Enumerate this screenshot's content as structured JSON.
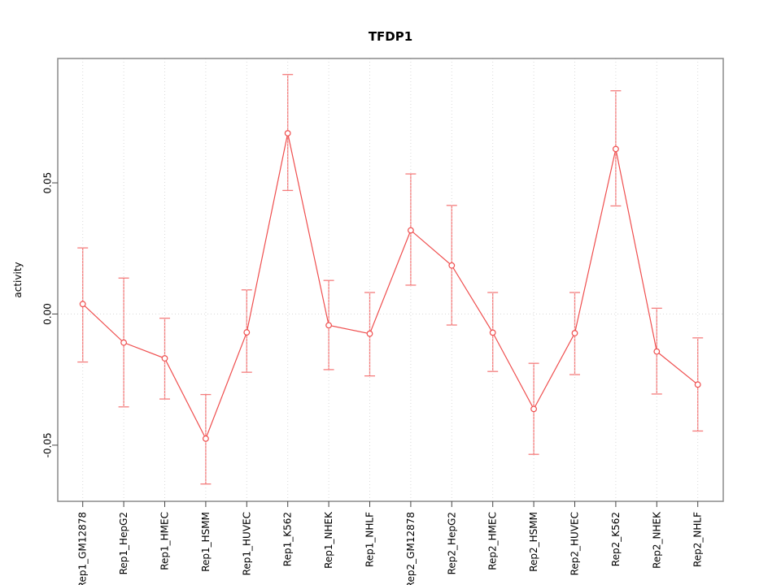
{
  "chart_data": {
    "type": "line",
    "title": "TFDP1",
    "xlabel": "",
    "ylabel": "activity",
    "categories": [
      "Rep1_GM12878",
      "Rep1_HepG2",
      "Rep1_HMEC",
      "Rep1_HSMM",
      "Rep1_HUVEC",
      "Rep1_K562",
      "Rep1_NHEK",
      "Rep1_NHLF",
      "Rep2_GM12878",
      "Rep2_HepG2",
      "Rep2_HMEC",
      "Rep2_HSMM",
      "Rep2_HUVEC",
      "Rep2_K562",
      "Rep2_NHEK",
      "Rep2_NHLF"
    ],
    "values": [
      0.0038,
      -0.0109,
      -0.0169,
      -0.0475,
      -0.007,
      0.0689,
      -0.0043,
      -0.0075,
      0.0319,
      0.0185,
      -0.0071,
      -0.0362,
      -0.0073,
      0.0629,
      -0.0143,
      -0.0269
    ],
    "error_low": [
      -0.0183,
      -0.0354,
      -0.0324,
      -0.0648,
      -0.0222,
      0.0471,
      -0.0212,
      -0.0236,
      0.011,
      -0.0042,
      -0.0219,
      -0.0535,
      -0.0231,
      0.0412,
      -0.0305,
      -0.0446
    ],
    "error_high": [
      0.0252,
      0.0137,
      -0.0016,
      -0.0307,
      0.0092,
      0.0913,
      0.0128,
      0.0082,
      0.0534,
      0.0414,
      0.0082,
      -0.0188,
      0.0082,
      0.0851,
      0.0022,
      -0.0091
    ],
    "ylim": [
      -0.0714,
      0.0974
    ],
    "ytick_values": [
      0.05,
      0,
      -0.05
    ],
    "ytick_labels": [
      "0.05",
      "0.00",
      "-0.05"
    ],
    "point_style": "open-circle",
    "legend": null,
    "grid": {
      "vertical": "dotted-per-category",
      "horizontal": "dotted-at-zero"
    },
    "colors": {
      "series": "#ef4e4e",
      "error_bar": "#f57c7c",
      "grid": "#d9d9d9",
      "box": "#8a8a8a",
      "tick": "#454545",
      "text": "#000000"
    }
  }
}
